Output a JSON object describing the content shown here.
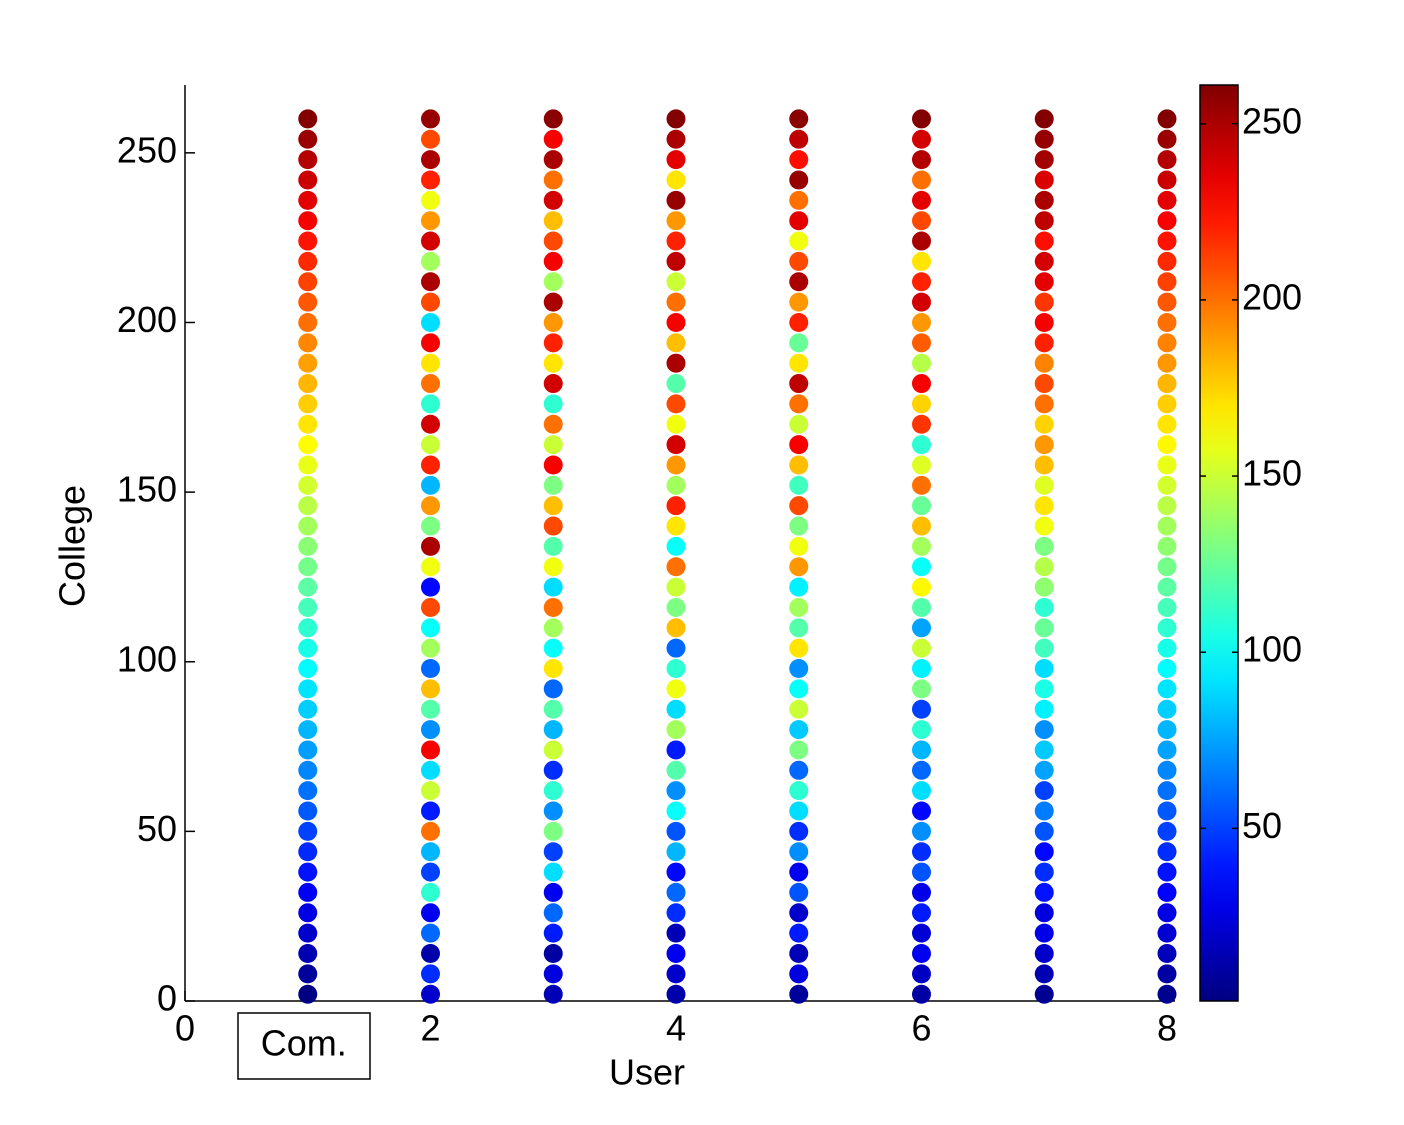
{
  "chart_data": {
    "type": "scatter",
    "xlabel": "User",
    "ylabel": "College",
    "annotation": "Com.",
    "xlim": [
      0,
      8
    ],
    "xticks": [
      0,
      2,
      4,
      6,
      8
    ],
    "ylim": [
      0,
      270
    ],
    "yticks": [
      0,
      50,
      100,
      150,
      200,
      250
    ],
    "colormap": "jet",
    "clim": [
      1,
      261
    ],
    "cticks": [
      50,
      100,
      150,
      200,
      250
    ],
    "y": [
      2,
      8,
      14,
      20,
      26,
      32,
      38,
      44,
      50,
      56,
      62,
      68,
      74,
      80,
      86,
      92,
      98,
      104,
      110,
      116,
      122,
      128,
      134,
      140,
      146,
      152,
      158,
      164,
      170,
      176,
      182,
      188,
      194,
      200,
      206,
      212,
      218,
      224,
      230,
      236,
      242,
      248,
      254,
      260
    ],
    "series": [
      {
        "x": 1,
        "values": [
          2,
          8,
          14,
          20,
          26,
          32,
          38,
          44,
          50,
          56,
          62,
          68,
          74,
          80,
          86,
          92,
          98,
          104,
          110,
          116,
          122,
          128,
          134,
          140,
          146,
          152,
          158,
          164,
          170,
          176,
          182,
          188,
          194,
          200,
          206,
          212,
          218,
          224,
          230,
          236,
          242,
          248,
          254,
          260
        ]
      },
      {
        "x": 2,
        "values": [
          20,
          45,
          12,
          60,
          30,
          110,
          50,
          80,
          200,
          40,
          150,
          90,
          230,
          70,
          120,
          180,
          60,
          140,
          100,
          210,
          35,
          160,
          250,
          130,
          190,
          80,
          220,
          150,
          240,
          110,
          200,
          170,
          230,
          90,
          210,
          250,
          140,
          240,
          190,
          160,
          220,
          250,
          210,
          255
        ]
      },
      {
        "x": 3,
        "values": [
          15,
          25,
          10,
          40,
          60,
          30,
          90,
          50,
          130,
          70,
          110,
          45,
          150,
          80,
          120,
          60,
          170,
          100,
          140,
          200,
          90,
          160,
          120,
          210,
          180,
          130,
          230,
          150,
          200,
          110,
          240,
          170,
          220,
          190,
          250,
          140,
          230,
          210,
          180,
          240,
          200,
          250,
          230,
          258
        ]
      },
      {
        "x": 4,
        "values": [
          12,
          20,
          30,
          15,
          45,
          60,
          35,
          80,
          55,
          100,
          70,
          120,
          40,
          140,
          90,
          160,
          110,
          60,
          180,
          130,
          150,
          200,
          100,
          170,
          220,
          140,
          190,
          240,
          160,
          210,
          120,
          250,
          180,
          230,
          200,
          150,
          245,
          220,
          190,
          255,
          170,
          235,
          250,
          260
        ]
      },
      {
        "x": 5,
        "values": [
          8,
          25,
          15,
          40,
          20,
          55,
          30,
          70,
          45,
          90,
          110,
          60,
          130,
          85,
          150,
          100,
          70,
          170,
          120,
          140,
          95,
          190,
          160,
          130,
          210,
          115,
          180,
          230,
          150,
          200,
          245,
          170,
          125,
          220,
          190,
          250,
          210,
          160,
          235,
          200,
          255,
          225,
          245,
          258
        ]
      },
      {
        "x": 6,
        "values": [
          10,
          18,
          30,
          22,
          40,
          28,
          55,
          45,
          70,
          35,
          90,
          60,
          80,
          110,
          50,
          130,
          95,
          150,
          75,
          120,
          165,
          100,
          140,
          180,
          125,
          200,
          155,
          110,
          215,
          175,
          230,
          145,
          205,
          190,
          240,
          220,
          170,
          250,
          210,
          235,
          200,
          248,
          240,
          260
        ]
      },
      {
        "x": 7,
        "values": [
          6,
          14,
          20,
          28,
          25,
          38,
          45,
          35,
          55,
          65,
          50,
          75,
          85,
          70,
          95,
          105,
          90,
          115,
          125,
          110,
          135,
          145,
          130,
          160,
          170,
          155,
          180,
          190,
          175,
          200,
          210,
          195,
          220,
          230,
          215,
          235,
          240,
          225,
          245,
          250,
          238,
          252,
          255,
          260
        ]
      },
      {
        "x": 8,
        "values": [
          5,
          10,
          16,
          22,
          26,
          33,
          38,
          45,
          50,
          56,
          62,
          68,
          75,
          80,
          86,
          92,
          98,
          104,
          110,
          116,
          122,
          128,
          135,
          140,
          146,
          152,
          158,
          165,
          170,
          176,
          182,
          190,
          195,
          200,
          206,
          212,
          218,
          224,
          230,
          236,
          242,
          248,
          254,
          260
        ]
      }
    ]
  }
}
